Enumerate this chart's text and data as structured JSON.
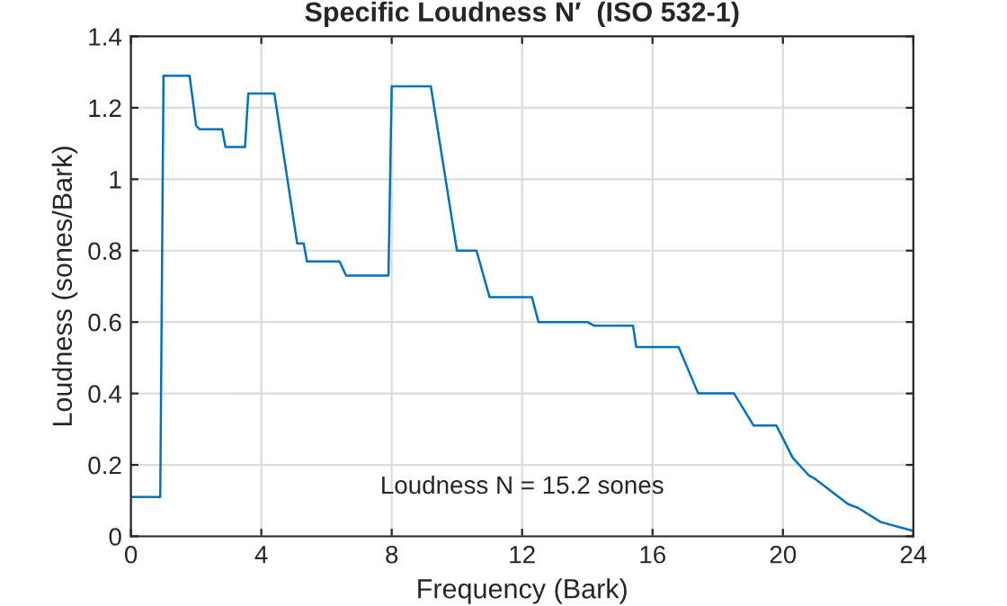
{
  "chart_data": {
    "type": "line",
    "title": "Specific Loudness N′  (ISO 532-1)",
    "xlabel": "Frequency (Bark)",
    "ylabel": "Loudness (sones/Bark)",
    "annotations": [
      "Loudness N = 15.2 sones"
    ],
    "series": [
      {
        "color": "#0072bd",
        "x": [
          0,
          0.9,
          1.0,
          1.8,
          2.0,
          2.1,
          2.8,
          2.9,
          3.5,
          3.6,
          4.4,
          5.1,
          5.3,
          5.4,
          6.4,
          6.6,
          7.9,
          8.0,
          9.2,
          10.0,
          10.6,
          11.0,
          12.3,
          12.5,
          14.0,
          14.2,
          15.4,
          15.5,
          16.8,
          17.4,
          18.5,
          19.1,
          19.8,
          20.3,
          20.8,
          21.0,
          22.0,
          22.3,
          23.0,
          24.0
        ],
        "values": [
          0.11,
          0.11,
          1.29,
          1.29,
          1.15,
          1.14,
          1.14,
          1.09,
          1.09,
          1.24,
          1.24,
          0.82,
          0.82,
          0.77,
          0.77,
          0.73,
          0.73,
          1.26,
          1.26,
          0.8,
          0.8,
          0.67,
          0.67,
          0.6,
          0.6,
          0.59,
          0.59,
          0.53,
          0.53,
          0.4,
          0.4,
          0.31,
          0.31,
          0.22,
          0.17,
          0.16,
          0.09,
          0.08,
          0.04,
          0.015
        ]
      }
    ],
    "xlim": [
      0,
      24
    ],
    "xticks": [
      0,
      4,
      8,
      12,
      16,
      20,
      24
    ],
    "ylim": [
      0,
      1.4
    ],
    "yticks": [
      0,
      {
        "value": 0.2,
        "label": "0.2"
      },
      {
        "value": 0.4,
        "label": "0.4"
      },
      {
        "value": 0.6,
        "label": "0.6"
      },
      {
        "value": 0.8,
        "label": "0.8"
      },
      1,
      {
        "value": 1.2,
        "label": "1.2"
      },
      {
        "value": 1.4,
        "label": "1.4"
      }
    ],
    "grid": true
  }
}
